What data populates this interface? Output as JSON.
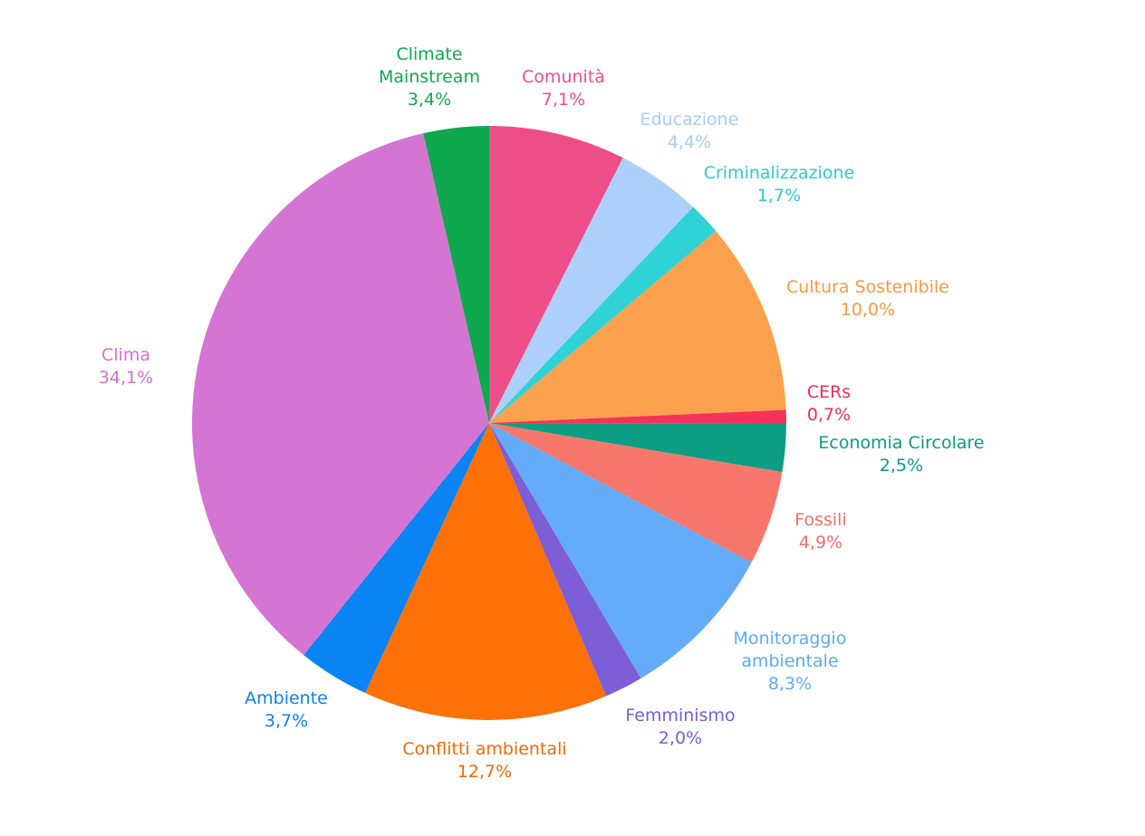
{
  "chart_data": {
    "type": "pie",
    "title": "",
    "start_angle_deg": 0,
    "direction": "clockwise",
    "slices": [
      {
        "label": "Comunità",
        "value": 7.1,
        "value_label": "7,1%",
        "color": "#EE4E88",
        "label_color": "#EE4E88"
      },
      {
        "label": "Educazione",
        "value": 4.4,
        "value_label": "4,4%",
        "color": "#ADD0FB",
        "label_color": "#A8CCF4"
      },
      {
        "label": "Criminalizzazione",
        "value": 1.7,
        "value_label": "1,7%",
        "color": "#2FD3D5",
        "label_color": "#2FC8C9"
      },
      {
        "label": "Cultura Sostenibile",
        "value": 10.0,
        "value_label": "10,0%",
        "color": "#FBA14D",
        "label_color": "#F59A44"
      },
      {
        "label": "CERs",
        "value": 0.7,
        "value_label": "0,7%",
        "color": "#F5335A",
        "label_color": "#EB3055"
      },
      {
        "label": "Economia Circolare",
        "value": 2.5,
        "value_label": "2,5%",
        "color": "#0D9E83",
        "label_color": "#0C9A80"
      },
      {
        "label": "Fossili",
        "value": 4.9,
        "value_label": "4,9%",
        "color": "#F8776C",
        "label_color": "#F27068"
      },
      {
        "label": "Monitoraggio\nambientale",
        "value": 8.3,
        "value_label": "8,3%",
        "color": "#64ACF9",
        "label_color": "#62A8F2"
      },
      {
        "label": "Femminismo",
        "value": 2.0,
        "value_label": "2,0%",
        "color": "#7D5ED6",
        "label_color": "#7A5BD2"
      },
      {
        "label": "Conflitti ambientali",
        "value": 12.7,
        "value_label": "12,7%",
        "color": "#FD7107",
        "label_color": "#F06A06"
      },
      {
        "label": "Ambiente",
        "value": 3.7,
        "value_label": "3,7%",
        "color": "#0A83F3",
        "label_color": "#0A80EE"
      },
      {
        "label": "Clima",
        "value": 34.1,
        "value_label": "34,1%",
        "color": "#D475D4",
        "label_color": "#D073D0"
      },
      {
        "label": "Climate\nMainstream",
        "value": 3.4,
        "value_label": "3,4%",
        "color": "#10A84E",
        "label_color": "#10A84E"
      }
    ]
  }
}
